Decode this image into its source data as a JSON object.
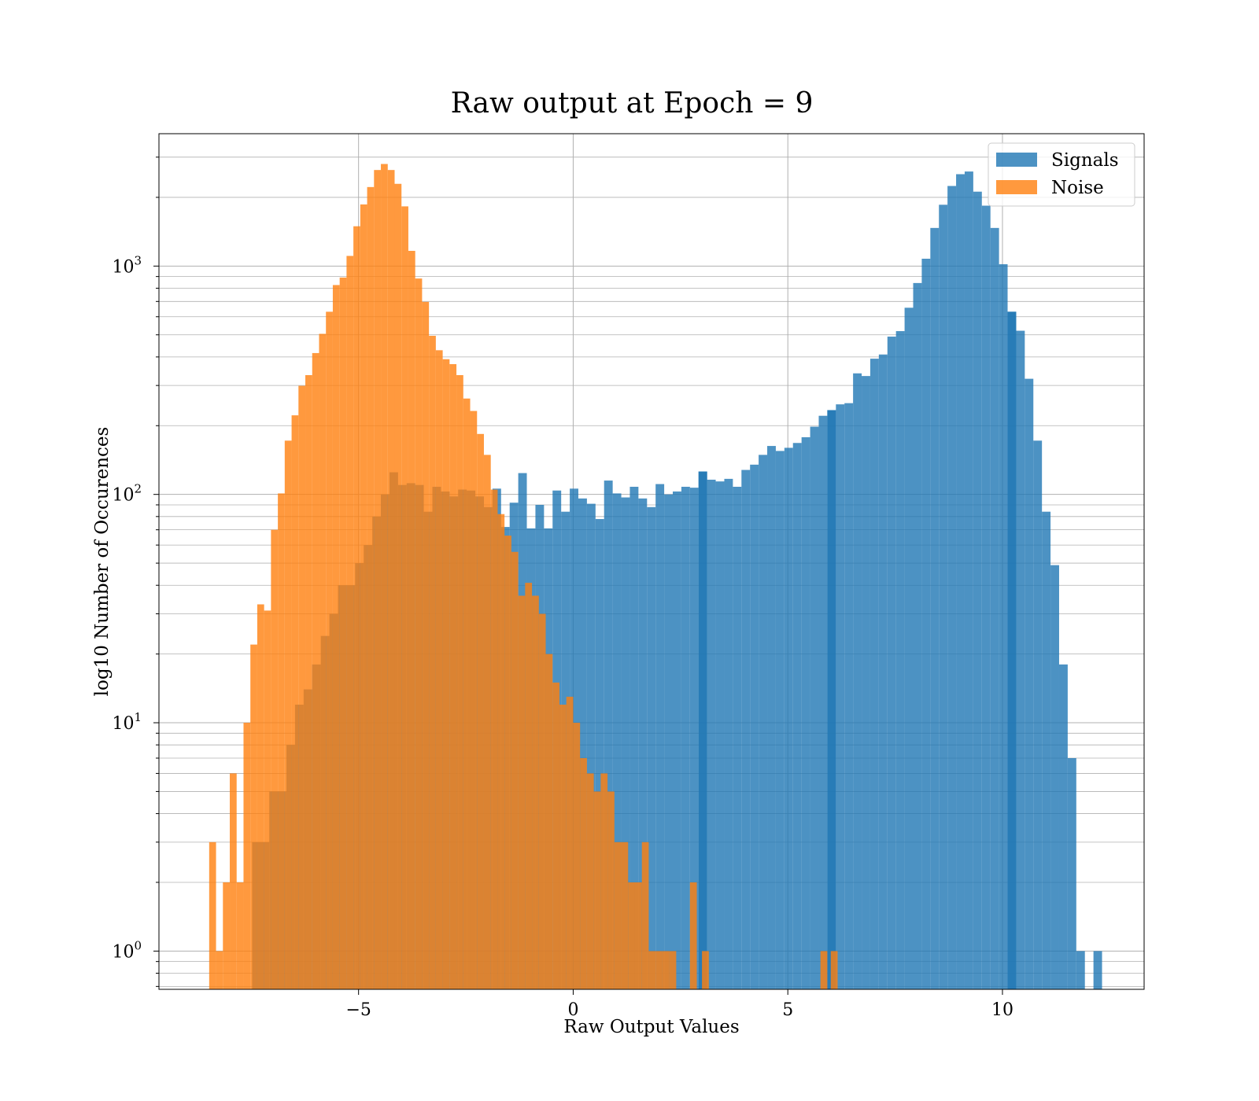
{
  "chart_data": {
    "type": "bar",
    "title": "Raw output at Epoch = 9",
    "xlabel": "Raw Output Values",
    "ylabel": "log10 Number of Occurences",
    "xlim": [
      -9.65,
      13.3
    ],
    "ylim": [
      0.68,
      3800
    ],
    "yscale": "log",
    "grid": true,
    "legend_position": "top-right",
    "x_ticks": [
      -5,
      0,
      5,
      10
    ],
    "x_tick_labels": [
      "−5",
      "0",
      "5",
      "10"
    ],
    "y_ticks": [
      1,
      10,
      100,
      1000
    ],
    "y_tick_labels": [
      {
        "base": "10",
        "exp": "0"
      },
      {
        "base": "10",
        "exp": "1"
      },
      {
        "base": "10",
        "exp": "2"
      },
      {
        "base": "10",
        "exp": "3"
      }
    ],
    "series": [
      {
        "name": "Signals",
        "color": "#1f77b4",
        "opacity": 0.8,
        "bins": [
          [
            -7.48,
            -7.08,
            3
          ],
          [
            -7.08,
            -6.68,
            5
          ],
          [
            -6.68,
            -6.48,
            8
          ],
          [
            -6.48,
            -6.28,
            12
          ],
          [
            -6.28,
            -6.08,
            14
          ],
          [
            -6.08,
            -5.88,
            18
          ],
          [
            -5.88,
            -5.68,
            24
          ],
          [
            -5.68,
            -5.48,
            30
          ],
          [
            -5.48,
            -5.28,
            40
          ],
          [
            -5.28,
            -5.08,
            40
          ],
          [
            -5.08,
            -4.88,
            50
          ],
          [
            -4.88,
            -4.68,
            60
          ],
          [
            -4.68,
            -4.48,
            80
          ],
          [
            -4.48,
            -4.28,
            100
          ],
          [
            -4.28,
            -4.08,
            125
          ],
          [
            -4.08,
            -3.88,
            110
          ],
          [
            -3.88,
            -3.68,
            112
          ],
          [
            -3.68,
            -3.48,
            110
          ],
          [
            -3.48,
            -3.28,
            84
          ],
          [
            -3.28,
            -3.08,
            108
          ],
          [
            -3.08,
            -2.88,
            103
          ],
          [
            -2.88,
            -2.68,
            98
          ],
          [
            -2.68,
            -2.48,
            105
          ],
          [
            -2.48,
            -2.28,
            104
          ],
          [
            -2.28,
            -2.08,
            98
          ],
          [
            -2.08,
            -1.88,
            88
          ],
          [
            -1.88,
            -1.68,
            106
          ],
          [
            -1.68,
            -1.48,
            72
          ],
          [
            -1.48,
            -1.28,
            92
          ],
          [
            -1.28,
            -1.08,
            124
          ],
          [
            -1.08,
            -0.88,
            71
          ],
          [
            -0.88,
            -0.68,
            90
          ],
          [
            -0.68,
            -0.48,
            71
          ],
          [
            -0.48,
            -0.28,
            104
          ],
          [
            -0.28,
            -0.08,
            84
          ],
          [
            -0.08,
            0.12,
            106
          ],
          [
            0.12,
            0.32,
            96
          ],
          [
            0.32,
            0.52,
            91
          ],
          [
            0.52,
            0.72,
            78
          ],
          [
            0.72,
            0.92,
            115
          ],
          [
            0.92,
            1.12,
            101
          ],
          [
            1.12,
            1.32,
            97
          ],
          [
            1.32,
            1.52,
            108
          ],
          [
            1.52,
            1.72,
            96
          ],
          [
            1.72,
            1.92,
            88
          ],
          [
            1.92,
            2.12,
            111
          ],
          [
            2.12,
            2.32,
            100
          ],
          [
            2.32,
            2.52,
            103
          ],
          [
            2.52,
            2.72,
            108
          ],
          [
            2.72,
            2.92,
            107
          ],
          [
            2.92,
            3.12,
            126
          ],
          [
            2.92,
            3.12,
            126
          ],
          [
            3.12,
            3.32,
            116
          ],
          [
            3.32,
            3.52,
            114
          ],
          [
            3.52,
            3.72,
            117
          ],
          [
            3.72,
            3.92,
            108
          ],
          [
            3.92,
            4.12,
            128
          ],
          [
            4.12,
            4.32,
            135
          ],
          [
            4.32,
            4.52,
            149
          ],
          [
            4.52,
            4.72,
            163
          ],
          [
            4.72,
            4.92,
            155
          ],
          [
            4.92,
            5.12,
            160
          ],
          [
            5.12,
            5.32,
            168
          ],
          [
            5.32,
            5.52,
            178
          ],
          [
            5.52,
            5.72,
            198
          ],
          [
            5.72,
            5.92,
            221
          ],
          [
            5.92,
            6.12,
            234
          ],
          [
            5.92,
            6.12,
            234
          ],
          [
            6.12,
            6.32,
            248
          ],
          [
            6.32,
            6.52,
            251
          ],
          [
            6.52,
            6.72,
            339
          ],
          [
            6.72,
            6.92,
            330
          ],
          [
            6.92,
            7.12,
            393
          ],
          [
            7.12,
            7.32,
            410
          ],
          [
            7.32,
            7.52,
            491
          ],
          [
            7.52,
            7.72,
            519
          ],
          [
            7.72,
            7.92,
            657
          ],
          [
            7.92,
            8.12,
            843
          ],
          [
            8.12,
            8.32,
            1077
          ],
          [
            8.32,
            8.52,
            1469
          ],
          [
            8.52,
            8.72,
            1856
          ],
          [
            8.72,
            8.92,
            2243
          ],
          [
            8.92,
            9.12,
            2526
          ],
          [
            9.12,
            9.32,
            2595
          ],
          [
            9.32,
            9.52,
            2118
          ],
          [
            9.52,
            9.72,
            1839
          ],
          [
            9.72,
            9.92,
            1469
          ],
          [
            9.92,
            10.12,
            1019
          ],
          [
            10.12,
            10.32,
            631
          ],
          [
            10.12,
            10.32,
            631
          ],
          [
            10.32,
            10.52,
            521
          ],
          [
            10.52,
            10.72,
            321
          ],
          [
            10.72,
            10.92,
            172
          ],
          [
            10.92,
            11.12,
            84
          ],
          [
            11.12,
            11.32,
            49
          ],
          [
            11.32,
            11.52,
            18
          ],
          [
            11.52,
            11.72,
            7
          ],
          [
            11.72,
            11.92,
            1
          ],
          [
            12.12,
            12.32,
            1
          ]
        ]
      },
      {
        "name": "Noise",
        "color": "#ff7f0e",
        "opacity": 0.8,
        "bins": [
          [
            -8.48,
            -8.32,
            3
          ],
          [
            -8.32,
            -8.16,
            1
          ],
          [
            -8.16,
            -8.0,
            2
          ],
          [
            -8.0,
            -7.84,
            6
          ],
          [
            -7.84,
            -7.68,
            2
          ],
          [
            -7.68,
            -7.52,
            10
          ],
          [
            -7.52,
            -7.36,
            22
          ],
          [
            -7.36,
            -7.2,
            33
          ],
          [
            -7.2,
            -7.04,
            31
          ],
          [
            -7.04,
            -6.88,
            70
          ],
          [
            -6.88,
            -6.72,
            101
          ],
          [
            -6.72,
            -6.56,
            172
          ],
          [
            -6.56,
            -6.4,
            222
          ],
          [
            -6.4,
            -6.24,
            299
          ],
          [
            -6.24,
            -6.08,
            333
          ],
          [
            -6.08,
            -5.92,
            416
          ],
          [
            -5.92,
            -5.76,
            505
          ],
          [
            -5.76,
            -5.6,
            631
          ],
          [
            -5.6,
            -5.44,
            826
          ],
          [
            -5.44,
            -5.28,
            891
          ],
          [
            -5.28,
            -5.12,
            1108
          ],
          [
            -5.12,
            -4.96,
            1494
          ],
          [
            -4.96,
            -4.8,
            1862
          ],
          [
            -4.8,
            -4.64,
            2219
          ],
          [
            -4.64,
            -4.48,
            2635
          ],
          [
            -4.48,
            -4.32,
            2800
          ],
          [
            -4.32,
            -4.16,
            2635
          ],
          [
            -4.16,
            -4.0,
            2292
          ],
          [
            -4.0,
            -3.84,
            1826
          ],
          [
            -3.84,
            -3.68,
            1166
          ],
          [
            -3.68,
            -3.52,
            882
          ],
          [
            -3.52,
            -3.36,
            697
          ],
          [
            -3.36,
            -3.2,
            495
          ],
          [
            -3.2,
            -3.04,
            428
          ],
          [
            -3.04,
            -2.88,
            391
          ],
          [
            -2.88,
            -2.72,
            372
          ],
          [
            -2.72,
            -2.56,
            333
          ],
          [
            -2.56,
            -2.4,
            263
          ],
          [
            -2.4,
            -2.24,
            232
          ],
          [
            -2.24,
            -2.08,
            184
          ],
          [
            -2.08,
            -1.92,
            149
          ],
          [
            -1.92,
            -1.76,
            105
          ],
          [
            -1.76,
            -1.6,
            82
          ],
          [
            -1.6,
            -1.44,
            66
          ],
          [
            -1.44,
            -1.28,
            56
          ],
          [
            -1.28,
            -1.12,
            36
          ],
          [
            -1.12,
            -0.96,
            41
          ],
          [
            -0.96,
            -0.8,
            36
          ],
          [
            -0.8,
            -0.64,
            30
          ],
          [
            -0.64,
            -0.48,
            20
          ],
          [
            -0.48,
            -0.32,
            15
          ],
          [
            -0.32,
            -0.16,
            12
          ],
          [
            -0.16,
            0.0,
            13
          ],
          [
            0.0,
            0.16,
            10
          ],
          [
            0.16,
            0.32,
            7
          ],
          [
            0.32,
            0.48,
            6
          ],
          [
            0.48,
            0.64,
            5
          ],
          [
            0.64,
            0.8,
            6
          ],
          [
            0.8,
            0.96,
            5
          ],
          [
            0.96,
            1.12,
            3
          ],
          [
            1.12,
            1.28,
            3
          ],
          [
            1.28,
            1.44,
            2
          ],
          [
            1.44,
            1.6,
            2
          ],
          [
            1.6,
            1.76,
            3
          ],
          [
            1.76,
            1.92,
            1
          ],
          [
            1.92,
            2.08,
            1
          ],
          [
            2.08,
            2.24,
            1
          ],
          [
            2.24,
            2.4,
            1
          ],
          [
            2.72,
            2.88,
            2
          ],
          [
            3.0,
            3.16,
            1
          ],
          [
            5.76,
            5.92,
            1
          ],
          [
            6.0,
            6.16,
            1
          ]
        ]
      }
    ]
  }
}
